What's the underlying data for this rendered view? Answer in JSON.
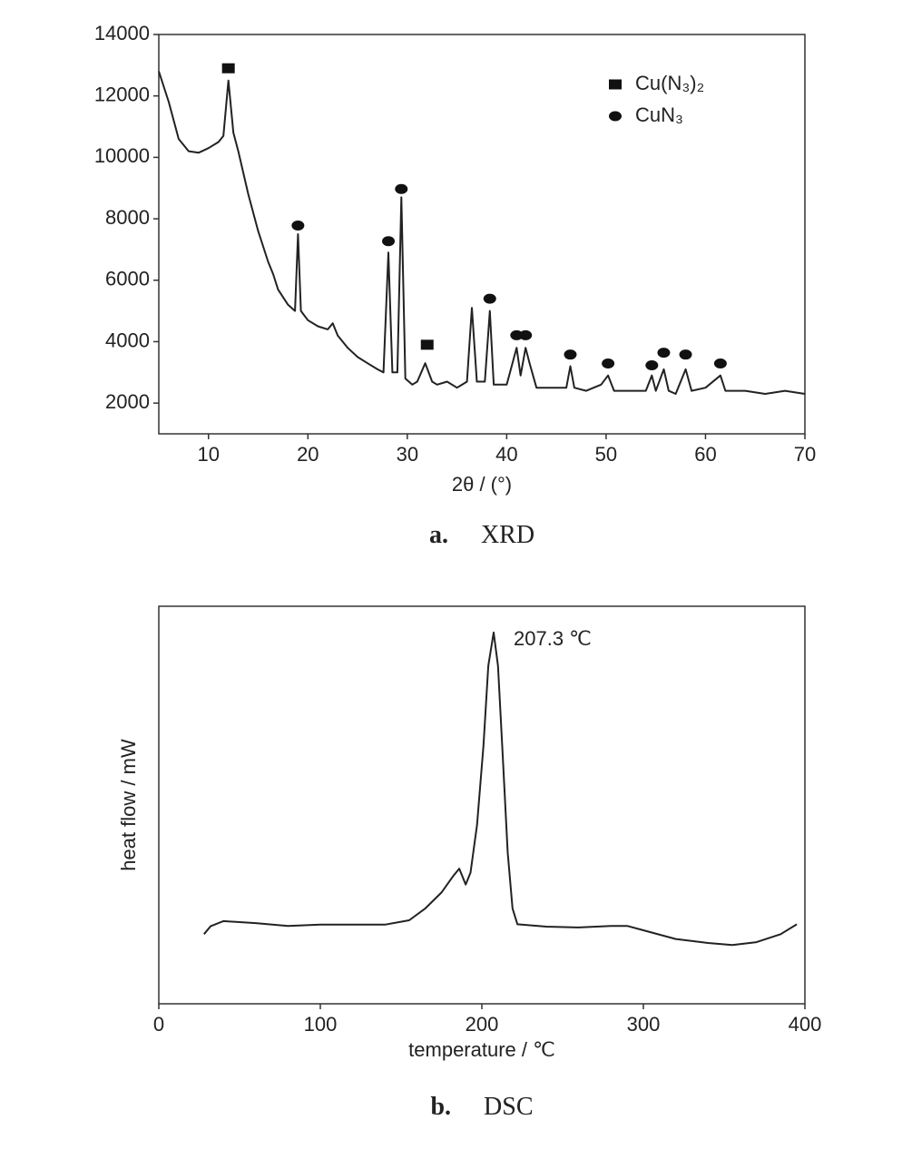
{
  "chart_data": [
    {
      "type": "line",
      "xlabel": "2θ / (°)",
      "caption_label": "a.",
      "caption": "XRD",
      "xlim": [
        5,
        70
      ],
      "xticks": [
        10,
        20,
        30,
        40,
        50,
        60,
        70
      ],
      "ylim": [
        1000,
        14000
      ],
      "yticks": [
        2000,
        4000,
        6000,
        8000,
        10000,
        12000,
        14000
      ],
      "legend": "upper right",
      "series": [
        {
          "color": "#222222",
          "x": [
            5,
            6,
            7,
            8,
            9,
            10,
            11,
            11.5,
            12,
            12.5,
            13,
            14,
            15,
            16,
            16.5,
            17,
            18,
            18.7,
            19,
            19.3,
            20,
            21,
            22,
            22.5,
            23,
            24,
            25,
            26,
            27,
            27.6,
            28.1,
            28.5,
            29,
            29.4,
            29.8,
            30.5,
            31,
            31.8,
            32.5,
            33,
            34,
            35,
            36,
            36.5,
            37,
            37.8,
            38.3,
            38.7,
            40,
            41,
            41.4,
            41.9,
            42.3,
            43,
            44,
            45,
            46,
            46.4,
            46.8,
            48,
            49.5,
            50.2,
            50.8,
            52,
            54,
            54.6,
            55,
            55.8,
            56.3,
            57,
            58,
            58.6,
            60,
            61.5,
            62,
            64,
            66,
            68,
            70
          ],
          "values": [
            12800,
            11800,
            10600,
            10200,
            10150,
            10300,
            10500,
            10700,
            12500,
            10800,
            10200,
            8800,
            7600,
            6600,
            6200,
            5700,
            5200,
            5000,
            7500,
            5000,
            4700,
            4500,
            4400,
            4600,
            4200,
            3800,
            3500,
            3300,
            3100,
            3000,
            6900,
            3000,
            3000,
            8700,
            2800,
            2600,
            2700,
            3300,
            2700,
            2600,
            2700,
            2500,
            2700,
            5100,
            2700,
            2700,
            5000,
            2600,
            2600,
            3800,
            2900,
            3800,
            3300,
            2500,
            2500,
            2500,
            2500,
            3200,
            2500,
            2400,
            2600,
            2900,
            2400,
            2400,
            2400,
            2900,
            2400,
            3100,
            2400,
            2300,
            3100,
            2400,
            2500,
            2900,
            2400,
            2400,
            2300,
            2400,
            2300
          ]
        },
        {
          "name": "Cu(N₃)₂",
          "marker": "square",
          "color": "#111111",
          "x": [
            12,
            32
          ],
          "values": [
            12900,
            3900
          ]
        },
        {
          "name": "CuN₃",
          "marker": "circle",
          "color": "#111111",
          "x": [
            19,
            28.1,
            29.4,
            38.3,
            41,
            41.9,
            46.4,
            50.2,
            54.6,
            55.8,
            58,
            61.5
          ],
          "values": [
            7780,
            7270,
            8970,
            5400,
            4210,
            4210,
            3580,
            3290,
            3230,
            3640,
            3580,
            3290
          ]
        }
      ]
    },
    {
      "type": "line",
      "xlabel": "temperature / ℃",
      "ylabel": "heat flow / mW",
      "caption_label": "b.",
      "caption": "DSC",
      "annotation": "207.3 ℃",
      "xlim": [
        0,
        400
      ],
      "xticks": [
        0,
        100,
        200,
        300,
        400
      ],
      "ylim": [
        0,
        100
      ],
      "series": [
        {
          "color": "#222222",
          "x": [
            28,
            32,
            40,
            60,
            80,
            100,
            120,
            140,
            155,
            165,
            175,
            182,
            186,
            190,
            193,
            197,
            201,
            204,
            207.3,
            210,
            213,
            216,
            219,
            222,
            240,
            260,
            280,
            290,
            300,
            320,
            340,
            355,
            370,
            385,
            395
          ],
          "values": [
            17.5,
            19.5,
            20.8,
            20.3,
            19.6,
            19.9,
            19.9,
            19.9,
            21,
            24,
            28,
            32,
            34,
            30,
            33,
            45,
            65,
            85,
            93.4,
            85,
            62,
            38,
            24,
            20,
            19.4,
            19.2,
            19.6,
            19.6,
            18.5,
            16.3,
            15.3,
            14.8,
            15.5,
            17.5,
            20
          ]
        }
      ]
    }
  ]
}
